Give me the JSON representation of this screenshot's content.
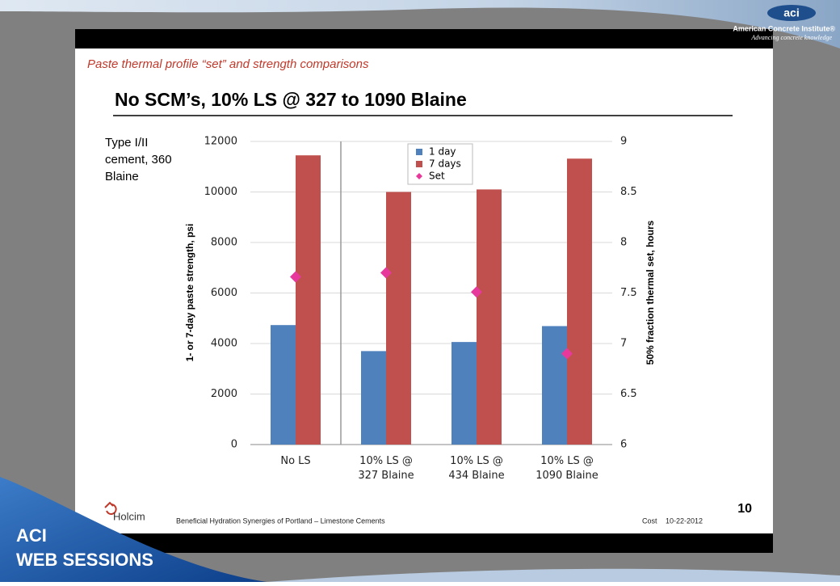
{
  "slide": {
    "section": "Paste thermal profile “set” and strength comparisons",
    "heading": "No SCM’s, 10% LS @ 327 to 1090 Blaine",
    "footer": "Beneficial Hydration Synergies of Portland – Limestone Cements",
    "author": "Cost",
    "date": "10-22-2012",
    "page": "10",
    "company": "Holcim",
    "logo": "aci",
    "org": "American Concrete Institute®",
    "tagline": "Advancing concrete knowledge",
    "brand": [
      "ACI",
      "WEB SESSIONS"
    ]
  },
  "chart_data": {
    "type": "bar",
    "annotation": [
      "Type I/II",
      "cement, 360",
      "Blaine"
    ],
    "y_label": "1- or 7-day paste strength, psi",
    "y2_label": "50% fraction thermal set, hours",
    "categories": [
      "No LS",
      "10% LS @\n327 Blaine",
      "10% LS @\n434 Blaine",
      "10% LS @\n1090 Blaine"
    ],
    "series": [
      {
        "name": "1 day",
        "type": "bar",
        "color": "#4f81bd",
        "values": [
          4730,
          3700,
          4060,
          4690
        ]
      },
      {
        "name": "7 days",
        "type": "bar",
        "color": "#c0504d",
        "values": [
          11450,
          10000,
          10100,
          11320
        ]
      },
      {
        "name": "Set",
        "type": "scatter",
        "marker": "diamond",
        "axis": "y2",
        "color": "#e6399b",
        "values": [
          7.66,
          7.7,
          7.51,
          6.9
        ]
      }
    ],
    "ylim": [
      0,
      12000
    ],
    "yticks": [
      0,
      2000,
      4000,
      6000,
      8000,
      10000,
      12000
    ],
    "y2lim": [
      6,
      9
    ],
    "y2ticks": [
      6,
      6.5,
      7,
      7.5,
      8,
      8.5,
      9
    ],
    "grid": true,
    "legend": "top"
  }
}
